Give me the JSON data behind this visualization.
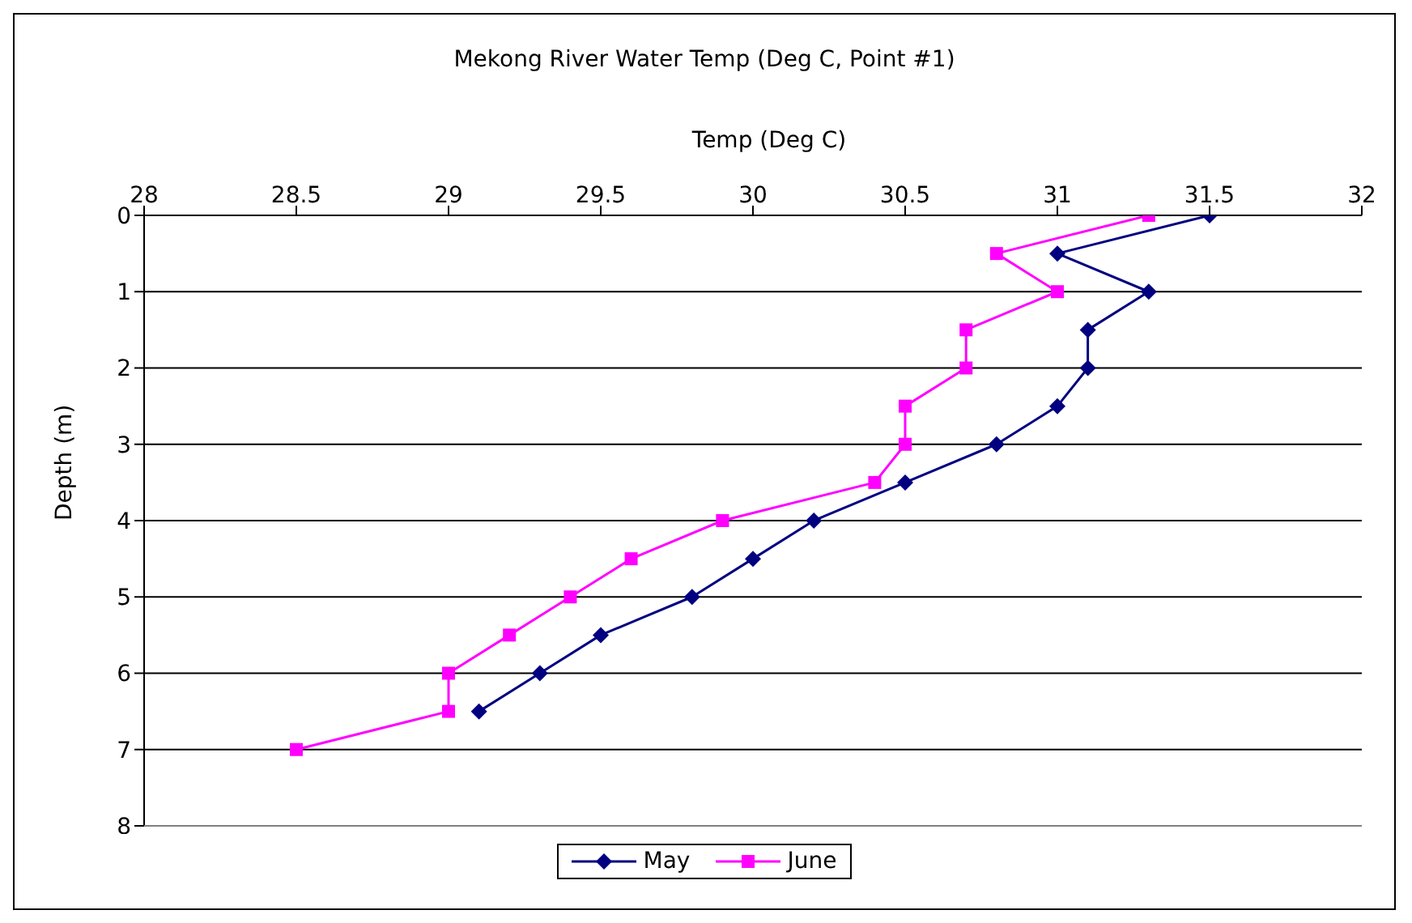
{
  "chart_data": {
    "type": "line",
    "title": "Mekong River Water Temp (Deg C, Point #1)",
    "xlabel": "Temp (Deg C)",
    "ylabel": "Depth (m)",
    "xlim": [
      28,
      32
    ],
    "xticks": [
      28,
      28.5,
      29,
      29.5,
      30,
      30.5,
      31,
      31.5,
      32
    ],
    "ylim": [
      8,
      0
    ],
    "yticks": [
      0,
      1,
      2,
      3,
      4,
      5,
      6,
      7,
      8
    ],
    "grid": "y",
    "legend": "bottom",
    "series": [
      {
        "name": "May",
        "color": "#000080",
        "marker": "diamond",
        "x": [
          31.5,
          31.0,
          31.3,
          31.1,
          31.1,
          31.0,
          30.8,
          30.5,
          30.2,
          30.0,
          29.8,
          29.5,
          29.3,
          29.1
        ],
        "values": [
          0,
          0.5,
          1,
          1.5,
          2,
          2.5,
          3,
          3.5,
          4,
          4.5,
          5,
          5.5,
          6,
          6.5
        ]
      },
      {
        "name": "June",
        "color": "#ff00ff",
        "marker": "square",
        "x": [
          31.3,
          30.8,
          31.0,
          30.7,
          30.7,
          30.5,
          30.5,
          30.4,
          29.9,
          29.6,
          29.4,
          29.2,
          29.0,
          29.0,
          28.5
        ],
        "values": [
          0,
          0.5,
          1,
          1.5,
          2,
          2.5,
          3,
          3.5,
          4,
          4.5,
          5,
          5.5,
          6,
          6.5,
          7
        ]
      }
    ]
  }
}
